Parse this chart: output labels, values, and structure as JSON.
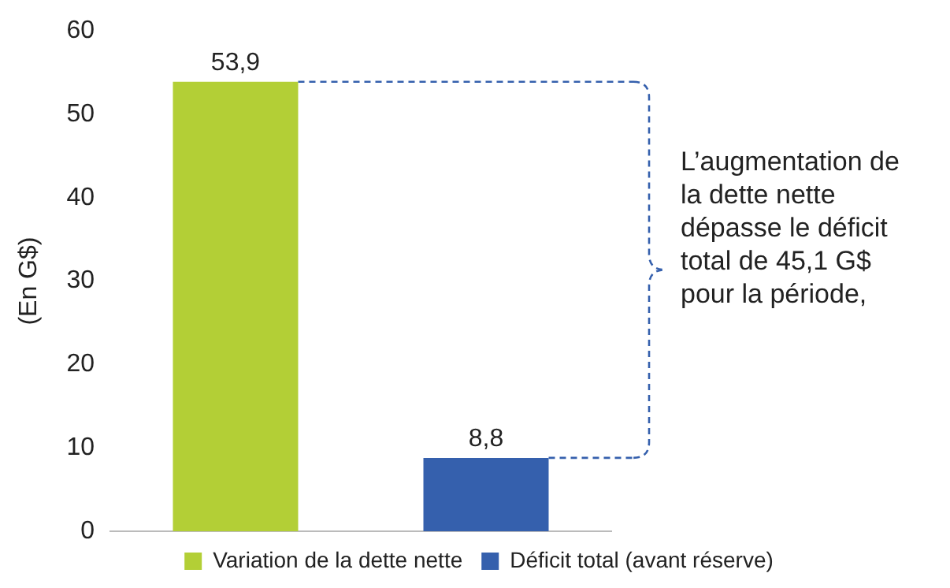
{
  "chart_data": {
    "type": "bar",
    "ylabel": "(En G$)",
    "categories": [
      null,
      null
    ],
    "series": [
      {
        "name": "Variation de la dette nette",
        "color": "#b3cf36",
        "values": [
          53.9,
          null
        ],
        "value_labels": [
          "53,9",
          null
        ]
      },
      {
        "name": "Déficit total (avant réserve)",
        "color": "#3560ad",
        "values": [
          null,
          8.8
        ],
        "value_labels": [
          null,
          "8,8"
        ]
      }
    ],
    "ylim": [
      0,
      60
    ],
    "yticks": [
      0,
      10,
      20,
      30,
      40,
      50,
      60
    ],
    "grid": false,
    "legend": "bottom",
    "ref_lines": [
      {
        "axis": "y",
        "value": 53.9,
        "color": "#3560ad",
        "line_style": "dashed"
      },
      {
        "axis": "y",
        "value": 8.8,
        "color": "#3560ad",
        "line_style": "dashed"
      }
    ],
    "annotations": [
      "L’augmentation de la dette nette dépasse le déficit total de 45,1 G$ pour la période,"
    ]
  }
}
